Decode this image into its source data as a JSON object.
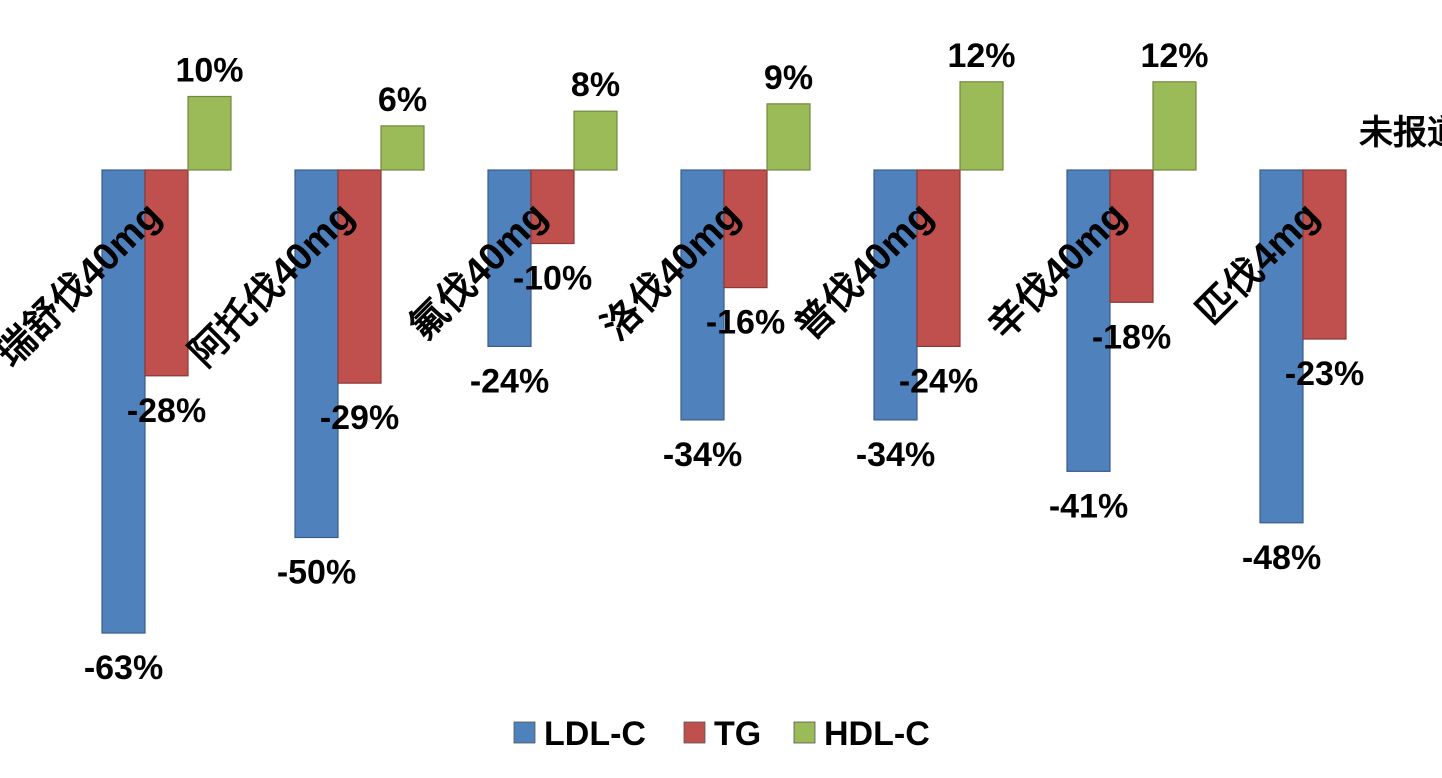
{
  "chart_data": {
    "type": "bar",
    "categories": [
      "瑞舒伐40mg",
      "阿托伐40mg",
      "氟伐40mg",
      "洛伐40mg",
      "普伐40mg",
      "辛伐40mg",
      "匹伐4mg"
    ],
    "series": [
      {
        "name": "LDL-C",
        "color": "#4F81BD",
        "values": [
          -63,
          -50,
          -24,
          -34,
          -34,
          -41,
          -48
        ]
      },
      {
        "name": "TG",
        "color": "#C0504D",
        "values": [
          -28,
          -29,
          -10,
          -16,
          -24,
          -18,
          -23
        ]
      },
      {
        "name": "HDL-C",
        "color": "#9BBB59",
        "values": [
          10,
          6,
          8,
          9,
          12,
          12,
          null
        ]
      }
    ],
    "data_labels": {
      "LDL-C": [
        "-63%",
        "-50%",
        "-24%",
        "-34%",
        "-34%",
        "-41%",
        "-48%"
      ],
      "TG": [
        "-28%",
        "-29%",
        "-10%",
        "-16%",
        "-24%",
        "-18%",
        "-23%"
      ],
      "HDL-C": [
        "10%",
        "6%",
        "8%",
        "9%",
        "12%",
        "12%",
        "未报道"
      ]
    },
    "legend_position": "bottom",
    "gridlines": false,
    "axes_visible": false
  }
}
